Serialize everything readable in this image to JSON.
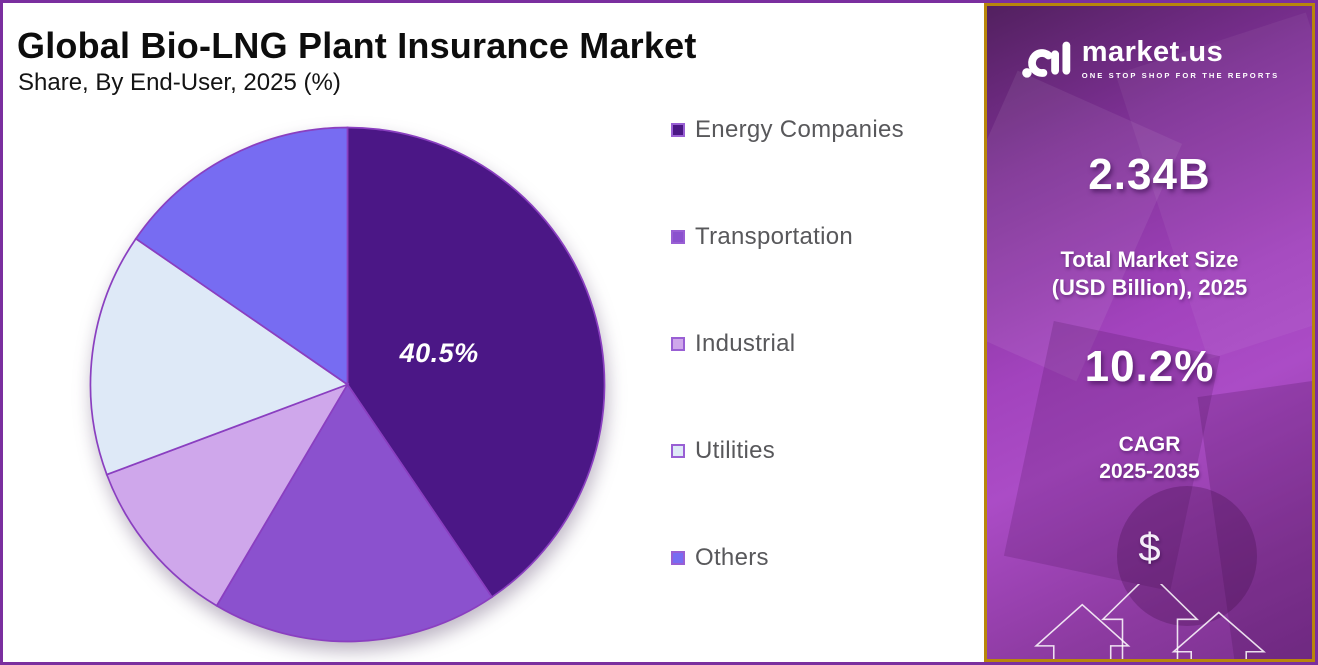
{
  "header": {
    "title": "Global Bio-LNG Plant Insurance Market",
    "subtitle": "Share, By End-User, 2025 (%)"
  },
  "chart_data": {
    "type": "pie",
    "title": "Global Bio-LNG Plant Insurance Market Share, By End-User, 2025 (%)",
    "unit": "%",
    "start_angle_deg": 0,
    "direction": "clockwise",
    "categories": [
      "Energy Companies",
      "Transportation",
      "Industrial",
      "Utilities",
      "Others"
    ],
    "values": [
      40.5,
      18.0,
      10.8,
      15.3,
      15.4
    ],
    "colors": [
      "#4b1786",
      "#8b51ce",
      "#cfa7eb",
      "#dee9f7",
      "#776cf2"
    ],
    "stroke_color": "#8a3fc0",
    "data_label": "40.5%",
    "data_label_slice": "Energy Companies",
    "legend_position": "right"
  },
  "sidebar": {
    "brand": "market.us",
    "tagline": "ONE STOP SHOP FOR THE REPORTS",
    "market_size_value": "2.34B",
    "market_size_label": "Total Market Size\n(USD Billion), 2025",
    "cagr_value": "10.2%",
    "cagr_label": "CAGR\n2025-2035",
    "dollar_symbol": "$",
    "accent_border_color": "#b8860b",
    "background_colors": [
      "#52205f",
      "#a243bd",
      "#7c3190"
    ]
  }
}
